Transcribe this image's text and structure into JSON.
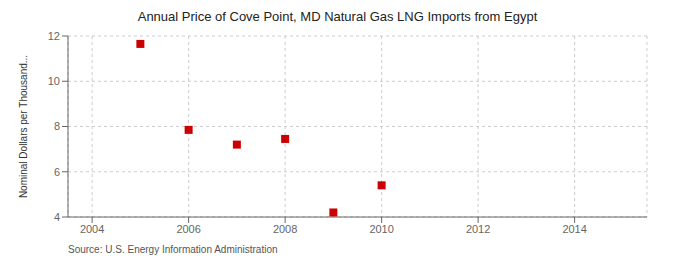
{
  "chart_data": {
    "type": "scatter",
    "title": "Annual Price of Cove Point, MD Natural Gas LNG Imports from Egypt",
    "y_label": "Nominal Dollars per Thousand...",
    "annotations": [
      "Source: U.S. Energy Information Administration"
    ],
    "x": [
      2005,
      2006,
      2007,
      2008,
      2009,
      2010
    ],
    "values": [
      11.65,
      7.85,
      7.2,
      7.45,
      4.2,
      5.4
    ],
    "color": "#cc0000",
    "marker": "square",
    "xlim": [
      2003.5,
      2015.5
    ],
    "xticks": [
      2004,
      2006,
      2008,
      2010,
      2012,
      2014
    ],
    "ylim": [
      4,
      12
    ],
    "yticks": [
      4,
      6,
      8,
      10,
      12
    ],
    "grid": true
  }
}
